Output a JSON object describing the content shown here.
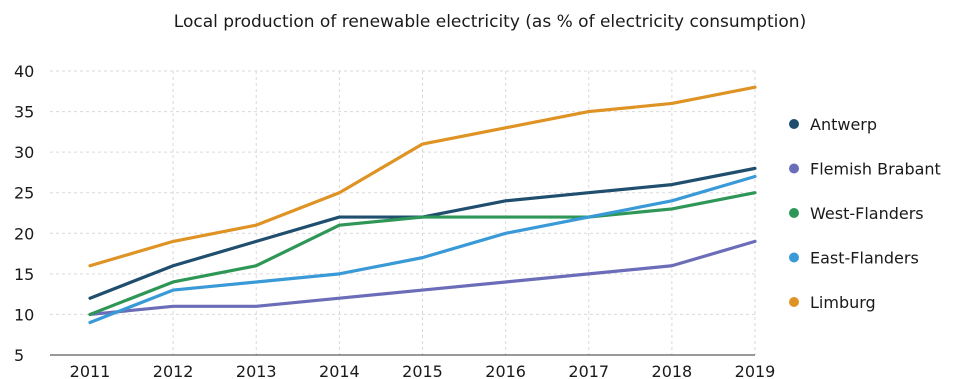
{
  "chart_data": {
    "type": "line",
    "title": "Local production of renewable electricity (as % of electricity consumption)",
    "xlabel": "",
    "ylabel": "",
    "x": [
      "2011",
      "2012",
      "2013",
      "2014",
      "2015",
      "2016",
      "2017",
      "2018",
      "2019"
    ],
    "ylim": [
      5,
      40
    ],
    "yticks": [
      5,
      10,
      15,
      20,
      25,
      30,
      35,
      40
    ],
    "grid": true,
    "legend_position": "right",
    "series": [
      {
        "name": "Antwerp",
        "color": "#1f4e6e",
        "values": [
          12,
          16,
          19,
          22,
          22,
          24,
          25,
          26,
          28
        ]
      },
      {
        "name": "Flemish Brabant",
        "color": "#6c6db8",
        "values": [
          10,
          11,
          11,
          12,
          13,
          14,
          15,
          16,
          19
        ]
      },
      {
        "name": "West-Flanders",
        "color": "#2e9656",
        "values": [
          10,
          14,
          16,
          21,
          22,
          22,
          22,
          23,
          25
        ]
      },
      {
        "name": "East-Flanders",
        "color": "#3a9ad8",
        "values": [
          9,
          13,
          14,
          15,
          17,
          20,
          22,
          24,
          27
        ]
      },
      {
        "name": "Limburg",
        "color": "#de9324",
        "values": [
          16,
          19,
          21,
          25,
          31,
          33,
          35,
          36,
          38
        ]
      }
    ]
  }
}
